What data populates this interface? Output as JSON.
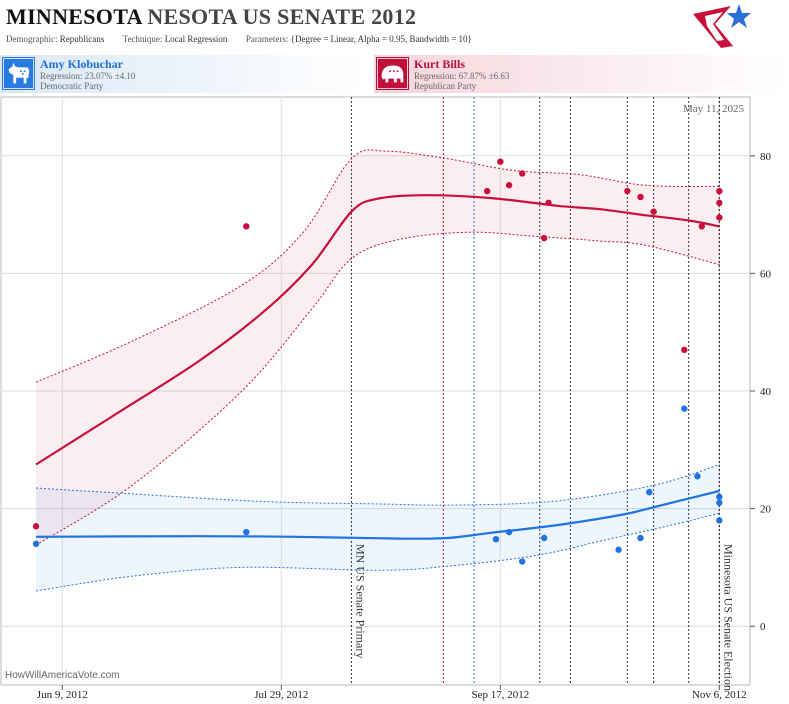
{
  "header": {
    "title_state": "MINNESOTA",
    "title_rest": "NESOTA US SENATE 2012",
    "demographic_label": "Demographic:",
    "demographic_value": "Republicans",
    "technique_label": "Technique:",
    "technique_value": "Local Regression",
    "parameters_label": "Parameters:",
    "parameters_value": "{Degree = Linear, Alpha = 0.95, Bandwidth = 10}"
  },
  "candidates": {
    "dem": {
      "name": "Amy Klobuchar",
      "regression": "Regression: 23.07% ±4.10",
      "party": "Democratic Party",
      "icon": "donkey-icon",
      "color": "#1f74e0"
    },
    "rep": {
      "name": "Kurt Bills",
      "regression": "Regression: 67.87% ±6.63",
      "party": "Republican Party",
      "icon": "elephant-icon",
      "color": "#c8103a"
    }
  },
  "logo": {
    "icon": "star-flag-logo-icon",
    "colors": [
      "#c8103a",
      "#2a6fd6"
    ]
  },
  "chart_data": {
    "type": "scatter",
    "date_label": "May 11, 2025",
    "source_label": "HowWillAmericaVote.com",
    "x_ticks": [
      "Jun 9, 2012",
      "Jul 29, 2012",
      "Sep 17, 2012",
      "Nov 6, 2012"
    ],
    "y_ticks": [
      0,
      20,
      40,
      60,
      80
    ],
    "x_range": [
      "2012-05-26",
      "2012-11-13"
    ],
    "ylim": [
      -10,
      90
    ],
    "grid": true,
    "events": [
      {
        "date": "2012-08-14",
        "label": "MN US Senate Primary",
        "color": "#333333"
      },
      {
        "date": "2012-11-06",
        "label": "Minnesota US Senate Election",
        "color": "#333333"
      }
    ],
    "marker_lines": [
      {
        "date": "2012-09-04",
        "color": "#b0103a"
      },
      {
        "date": "2012-09-11",
        "color": "#1f6fd6"
      },
      {
        "date": "2012-09-26",
        "color": "#333333"
      },
      {
        "date": "2012-10-03",
        "color": "#333333"
      },
      {
        "date": "2012-10-16",
        "color": "#333333"
      },
      {
        "date": "2012-10-22",
        "color": "#333333"
      },
      {
        "date": "2012-10-30",
        "color": "#333333"
      },
      {
        "date": "2012-11-06",
        "color": "#333333"
      }
    ],
    "series": [
      {
        "party": "rep",
        "color": "#c8103a",
        "points": [
          [
            "2012-06-03",
            17
          ],
          [
            "2012-07-21",
            68
          ],
          [
            "2012-09-14",
            74
          ],
          [
            "2012-09-17",
            79
          ],
          [
            "2012-09-19",
            75
          ],
          [
            "2012-09-22",
            77
          ],
          [
            "2012-09-27",
            66
          ],
          [
            "2012-09-28",
            72
          ],
          [
            "2012-10-16",
            74
          ],
          [
            "2012-10-19",
            73
          ],
          [
            "2012-10-22",
            70.5
          ],
          [
            "2012-10-29",
            47
          ],
          [
            "2012-11-02",
            68
          ],
          [
            "2012-11-06",
            74
          ],
          [
            "2012-11-06",
            72
          ],
          [
            "2012-11-06",
            69.5
          ]
        ],
        "trend": [
          [
            "2012-06-03",
            27.5
          ],
          [
            "2012-06-20",
            35.5
          ],
          [
            "2012-07-10",
            45
          ],
          [
            "2012-07-25",
            53.5
          ],
          [
            "2012-08-05",
            61.5
          ],
          [
            "2012-08-14",
            70.5
          ],
          [
            "2012-08-20",
            72.7
          ],
          [
            "2012-08-31",
            73.3
          ],
          [
            "2012-09-15",
            72.8
          ],
          [
            "2012-09-30",
            71.5
          ],
          [
            "2012-10-10",
            70.9
          ],
          [
            "2012-10-20",
            69.9
          ],
          [
            "2012-10-30",
            69
          ],
          [
            "2012-11-06",
            68
          ]
        ],
        "upper": [
          [
            "2012-06-03",
            41.5
          ],
          [
            "2012-06-25",
            48.5
          ],
          [
            "2012-07-20",
            58
          ],
          [
            "2012-08-03",
            67
          ],
          [
            "2012-08-14",
            79.5
          ],
          [
            "2012-08-22",
            80.8
          ],
          [
            "2012-09-05",
            79.5
          ],
          [
            "2012-09-20",
            77.5
          ],
          [
            "2012-10-05",
            76.8
          ],
          [
            "2012-10-20",
            75
          ],
          [
            "2012-11-06",
            74.8
          ]
        ],
        "lower": [
          [
            "2012-06-03",
            13.8
          ],
          [
            "2012-06-25",
            24
          ],
          [
            "2012-07-20",
            40
          ],
          [
            "2012-08-05",
            54
          ],
          [
            "2012-08-14",
            62.5
          ],
          [
            "2012-08-25",
            65.8
          ],
          [
            "2012-09-10",
            67
          ],
          [
            "2012-09-25",
            66.3
          ],
          [
            "2012-10-10",
            65.5
          ],
          [
            "2012-10-20",
            64.8
          ],
          [
            "2012-11-06",
            61.5
          ]
        ]
      },
      {
        "party": "dem",
        "color": "#1f74e0",
        "points": [
          [
            "2012-06-03",
            14
          ],
          [
            "2012-07-21",
            16
          ],
          [
            "2012-09-16",
            14.8
          ],
          [
            "2012-09-19",
            16
          ],
          [
            "2012-09-22",
            11
          ],
          [
            "2012-09-27",
            15
          ],
          [
            "2012-10-14",
            13
          ],
          [
            "2012-10-19",
            15
          ],
          [
            "2012-10-21",
            22.8
          ],
          [
            "2012-10-29",
            37
          ],
          [
            "2012-11-01",
            25.5
          ],
          [
            "2012-11-06",
            22
          ],
          [
            "2012-11-06",
            21
          ],
          [
            "2012-11-06",
            18
          ]
        ],
        "trend": [
          [
            "2012-06-03",
            15.2
          ],
          [
            "2012-07-10",
            15.3
          ],
          [
            "2012-08-01",
            15.2
          ],
          [
            "2012-08-25",
            14.9
          ],
          [
            "2012-09-05",
            15
          ],
          [
            "2012-09-15",
            15.9
          ],
          [
            "2012-09-30",
            17.2
          ],
          [
            "2012-10-15",
            19
          ],
          [
            "2012-10-25",
            20.8
          ],
          [
            "2012-11-06",
            23
          ]
        ],
        "upper": [
          [
            "2012-06-03",
            23.5
          ],
          [
            "2012-06-25",
            22.5
          ],
          [
            "2012-07-25",
            21.2
          ],
          [
            "2012-08-20",
            20.8
          ],
          [
            "2012-09-05",
            20.6
          ],
          [
            "2012-09-25",
            21
          ],
          [
            "2012-10-10",
            22.3
          ],
          [
            "2012-10-25",
            24.5
          ],
          [
            "2012-11-06",
            27.5
          ]
        ],
        "lower": [
          [
            "2012-06-03",
            6
          ],
          [
            "2012-06-25",
            8.5
          ],
          [
            "2012-07-20",
            10
          ],
          [
            "2012-08-20",
            9.5
          ],
          [
            "2012-09-05",
            10.2
          ],
          [
            "2012-09-25",
            12
          ],
          [
            "2012-10-10",
            14.5
          ],
          [
            "2012-10-25",
            17
          ],
          [
            "2012-11-06",
            19.2
          ]
        ]
      }
    ]
  }
}
